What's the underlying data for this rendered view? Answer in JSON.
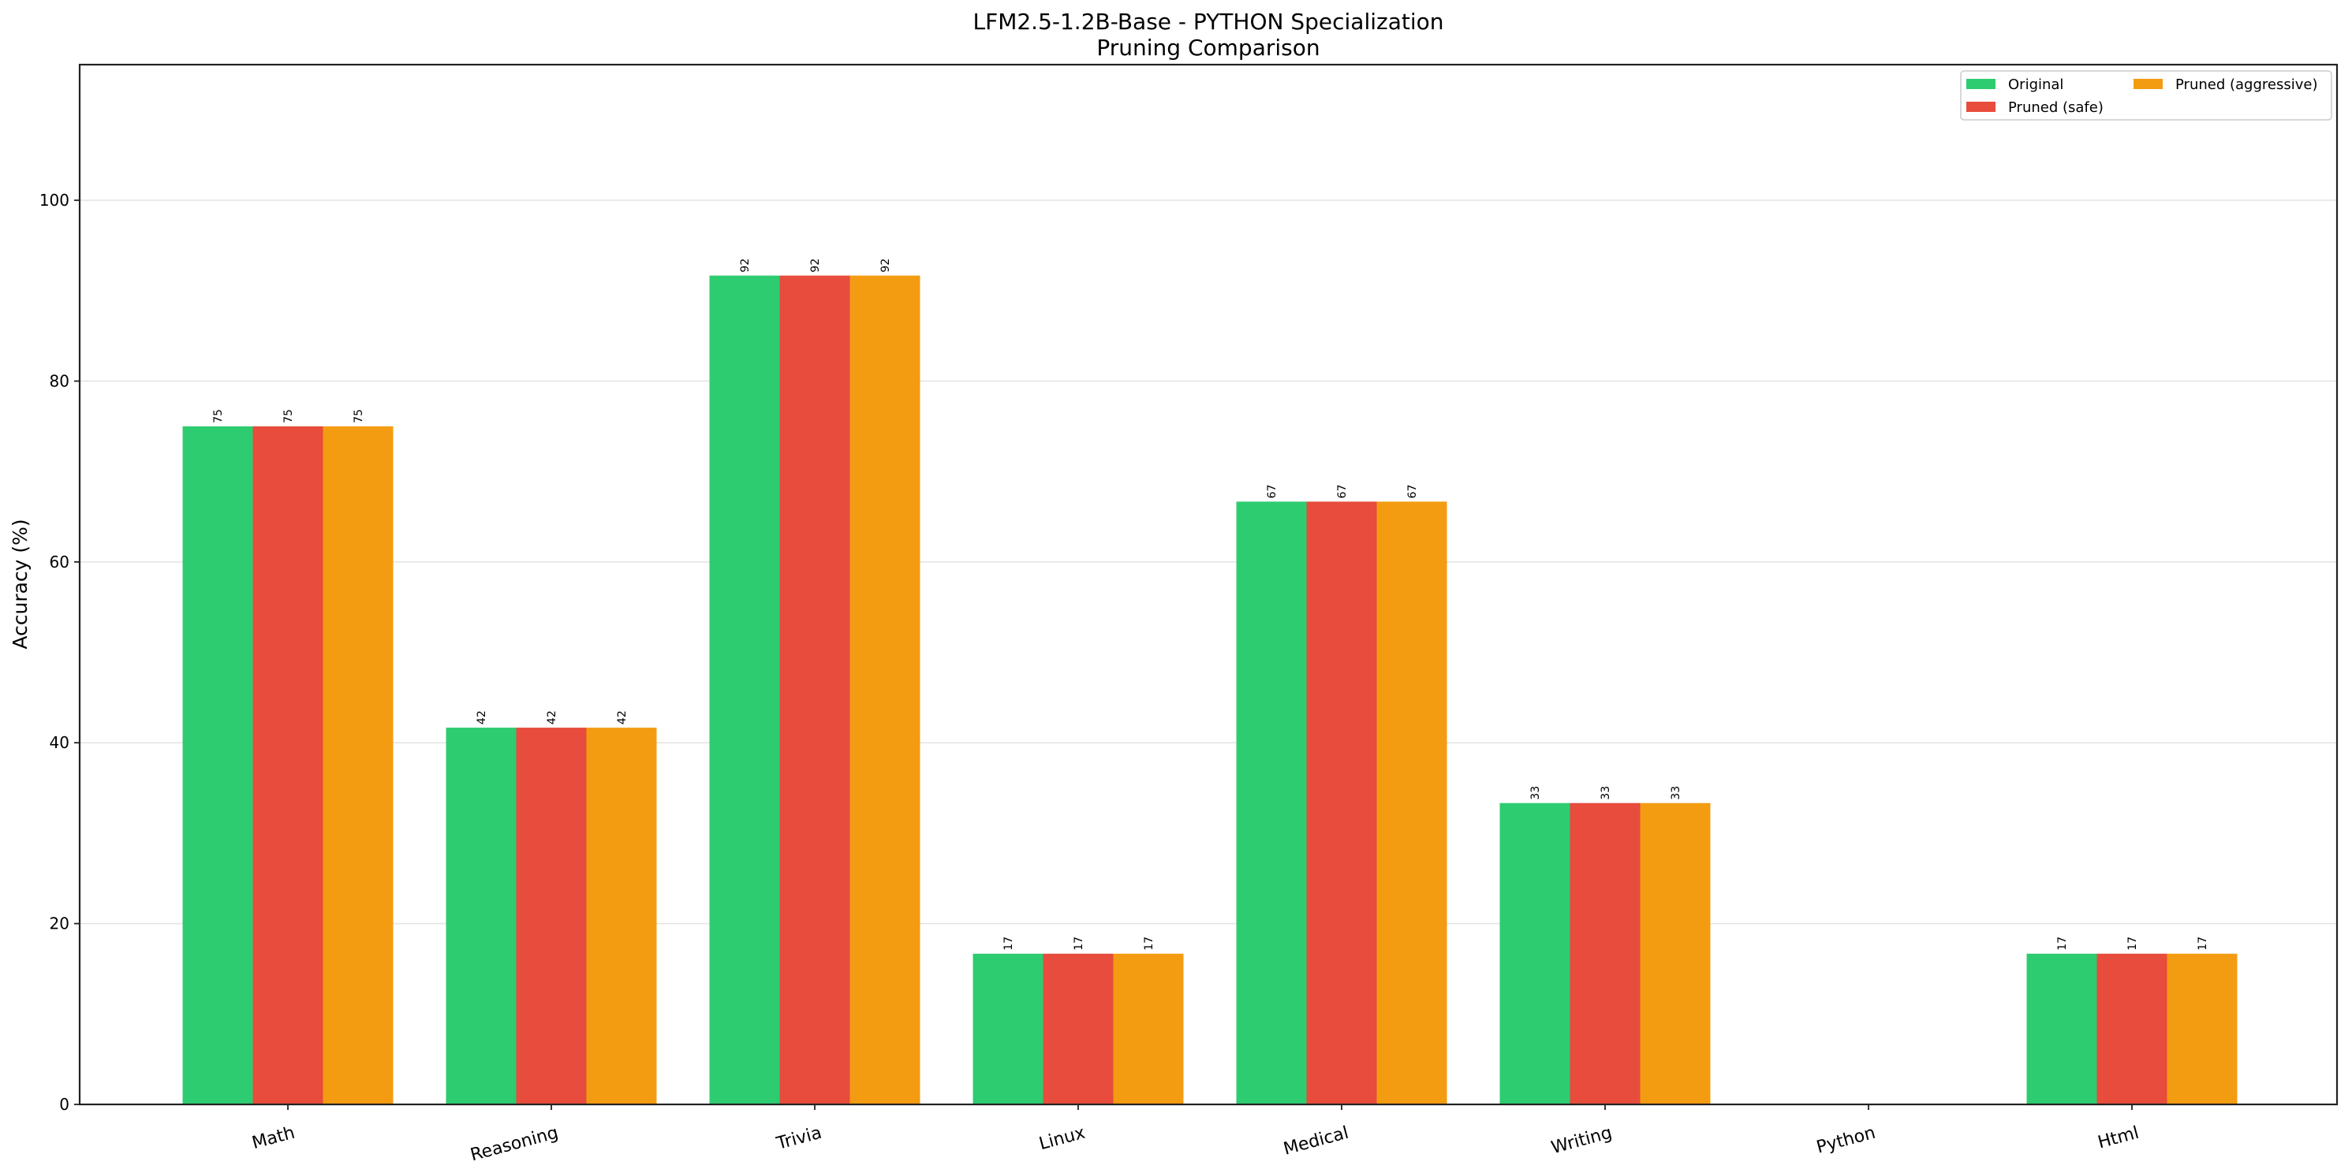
{
  "chart_data": {
    "type": "bar",
    "title": "LFM2.5-1.2B-Base - PYTHON Specialization",
    "subtitle": "Pruning Comparison",
    "xlabel": "",
    "ylabel": "Accuracy (%)",
    "ylim": [
      0,
      115
    ],
    "yticks": [
      0,
      20,
      40,
      60,
      80,
      100
    ],
    "grid": "y",
    "legend_placement": "top-right",
    "categories": [
      "Math",
      "Reasoning",
      "Trivia",
      "Linux",
      "Medical",
      "Writing",
      "Python",
      "Html"
    ],
    "series": [
      {
        "name": "Original",
        "color": "#2ecc71",
        "values": [
          75,
          41.67,
          91.67,
          16.67,
          66.67,
          33.33,
          0,
          16.67
        ],
        "labels": [
          "75",
          "42",
          "92",
          "17",
          "67",
          "33",
          "",
          "17"
        ]
      },
      {
        "name": "Pruned (safe)",
        "color": "#e74c3c",
        "values": [
          75,
          41.67,
          91.67,
          16.67,
          66.67,
          33.33,
          0,
          16.67
        ],
        "labels": [
          "75",
          "42",
          "92",
          "17",
          "67",
          "33",
          "",
          "17"
        ]
      },
      {
        "name": "Pruned (aggressive)",
        "color": "#f39c12",
        "values": [
          75,
          41.67,
          91.67,
          16.67,
          66.67,
          33.33,
          0,
          16.67
        ],
        "labels": [
          "75",
          "42",
          "92",
          "17",
          "67",
          "33",
          "",
          "17"
        ]
      }
    ]
  }
}
